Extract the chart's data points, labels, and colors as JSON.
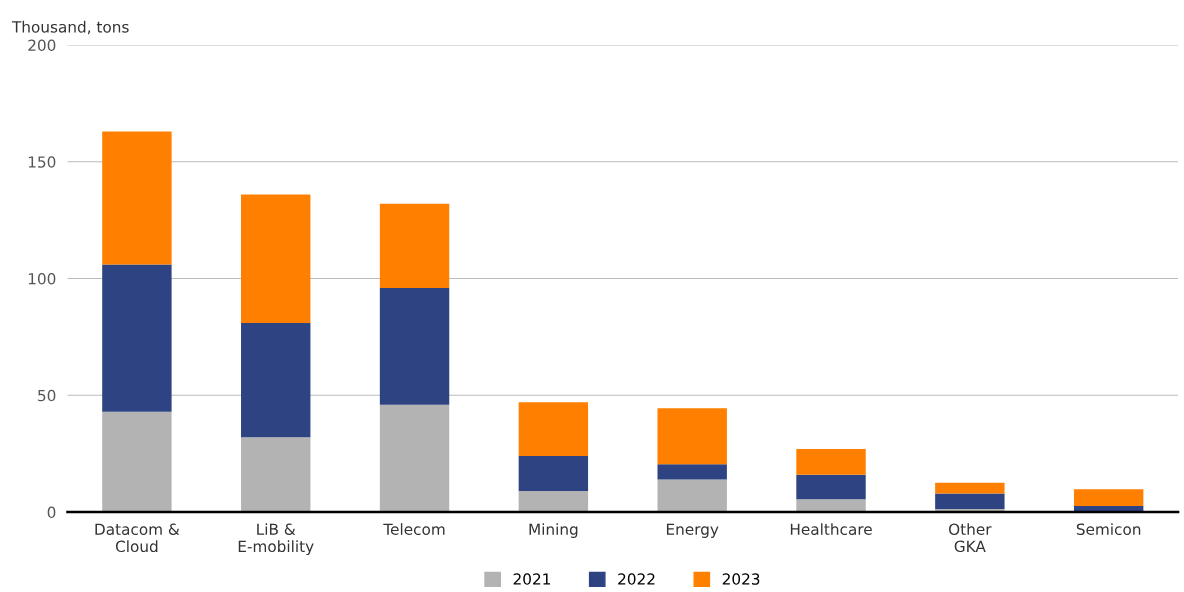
{
  "chart_data": {
    "type": "bar",
    "stacked": true,
    "ylabel": "Thousand, tons",
    "categories": [
      "Datacom &\nCloud",
      "LiB &\nE-mobility",
      "Telecom",
      "Mining",
      "Energy",
      "Healthcare",
      "Other\nGKA",
      "Semicon"
    ],
    "series": [
      {
        "name": "2021",
        "color": "#b3b3b3",
        "values": [
          43,
          32,
          46,
          9,
          14,
          5.5,
          1.3,
          0.3
        ]
      },
      {
        "name": "2022",
        "color": "#2e4482",
        "values": [
          63,
          49,
          50,
          15,
          6.5,
          10.5,
          6.7,
          2.3
        ]
      },
      {
        "name": "2023",
        "color": "#ff8000",
        "values": [
          57,
          55,
          36,
          23,
          24,
          11,
          4.6,
          7.2
        ]
      }
    ],
    "ylim": [
      0,
      200
    ],
    "yticks": [
      0,
      50,
      100,
      150,
      200
    ],
    "grid": "y",
    "legend": "bottom"
  }
}
